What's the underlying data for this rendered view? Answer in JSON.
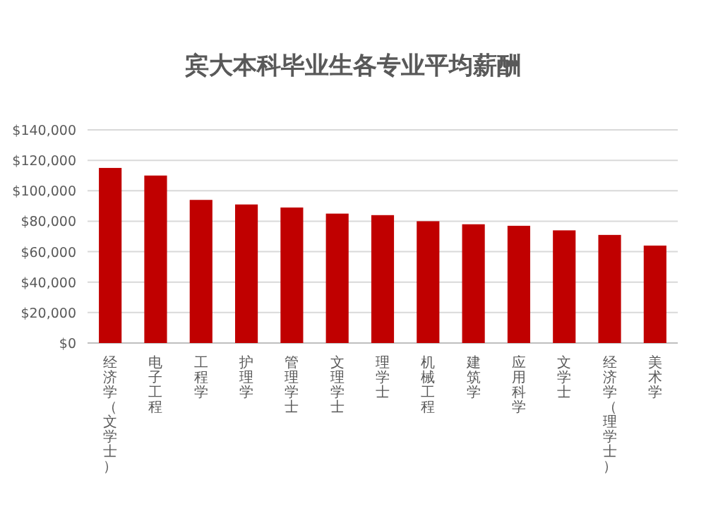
{
  "chart_data": {
    "type": "bar",
    "title": "宾大本科毕业生各专业平均薪酬",
    "categories": [
      "经济学（文学士）",
      "电子工程",
      "工程学",
      "护理学",
      "管理学士",
      "文理学士",
      "理学士",
      "机械工程",
      "建筑学",
      "应用科学",
      "文学士",
      "经济学（理学士）",
      "美术学"
    ],
    "values": [
      115000,
      110000,
      94000,
      91000,
      89000,
      85000,
      84000,
      80000,
      78000,
      77000,
      74000,
      71000,
      64000
    ],
    "color": "#c00000",
    "ylim": [
      0,
      140000
    ],
    "yticks": [
      {
        "value": 0,
        "label": "$0"
      },
      {
        "value": 20000,
        "label": "$20,000"
      },
      {
        "value": 40000,
        "label": "$40,000"
      },
      {
        "value": 60000,
        "label": "$60,000"
      },
      {
        "value": 80000,
        "label": "$80,000"
      },
      {
        "value": 100000,
        "label": "$100,000"
      },
      {
        "value": 120000,
        "label": "$120,000"
      },
      {
        "value": 140000,
        "label": "$140,000"
      }
    ],
    "grid": "y"
  }
}
